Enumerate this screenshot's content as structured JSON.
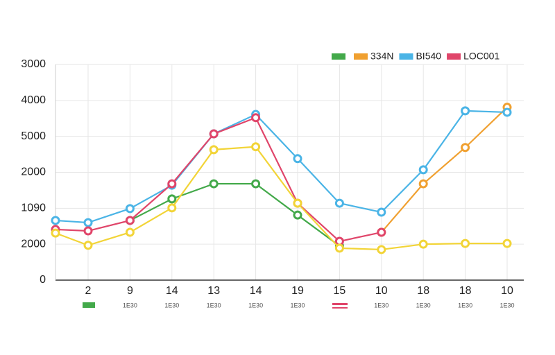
{
  "chart_data": {
    "type": "line",
    "categories": [
      null,
      "2",
      "9",
      "14",
      "13",
      "14",
      "19",
      "15",
      "10",
      "18",
      "18",
      "10"
    ],
    "x_sublabels": [
      null,
      null,
      "1E30",
      "1E30",
      "1E30",
      "1E30",
      "1E30",
      null,
      "1E30",
      "1E30",
      "1E30",
      "1E30"
    ],
    "ylim": [
      0,
      6000
    ],
    "yticks": [
      {
        "value": 6000,
        "label": "3000"
      },
      {
        "value": 5000,
        "label": "4000"
      },
      {
        "value": 4000,
        "label": "5000"
      },
      {
        "value": 3000,
        "label": "2000"
      },
      {
        "value": 2000,
        "label": "1090"
      },
      {
        "value": 1000,
        "label": "2000"
      },
      0
    ],
    "grid": true,
    "legend": "top-right",
    "series": [
      {
        "name": null,
        "color": "#43a94a",
        "values": [
          null,
          null,
          1660,
          2260,
          2680,
          2680,
          1810,
          950,
          null,
          null,
          null,
          null
        ]
      },
      {
        "name": "334N",
        "color": "#f0a030",
        "values": [
          null,
          null,
          null,
          null,
          null,
          null,
          null,
          null,
          1330,
          2680,
          3690,
          4810
        ]
      },
      {
        "name": "BI540",
        "color": "#4ab4e6",
        "values": [
          1660,
          1600,
          1990,
          2640,
          4070,
          4610,
          3380,
          2140,
          1890,
          3070,
          4710,
          4670
        ]
      },
      {
        "name": "LOC001",
        "color": "#e0456a",
        "values": [
          1410,
          1370,
          1660,
          2680,
          4070,
          4520,
          2140,
          1080,
          1330,
          null,
          null,
          null
        ]
      },
      {
        "name": null,
        "color": "#f2d437",
        "values": [
          1310,
          970,
          1330,
          2010,
          3630,
          3710,
          2140,
          890,
          850,
          1000,
          1020,
          1020
        ]
      }
    ]
  }
}
